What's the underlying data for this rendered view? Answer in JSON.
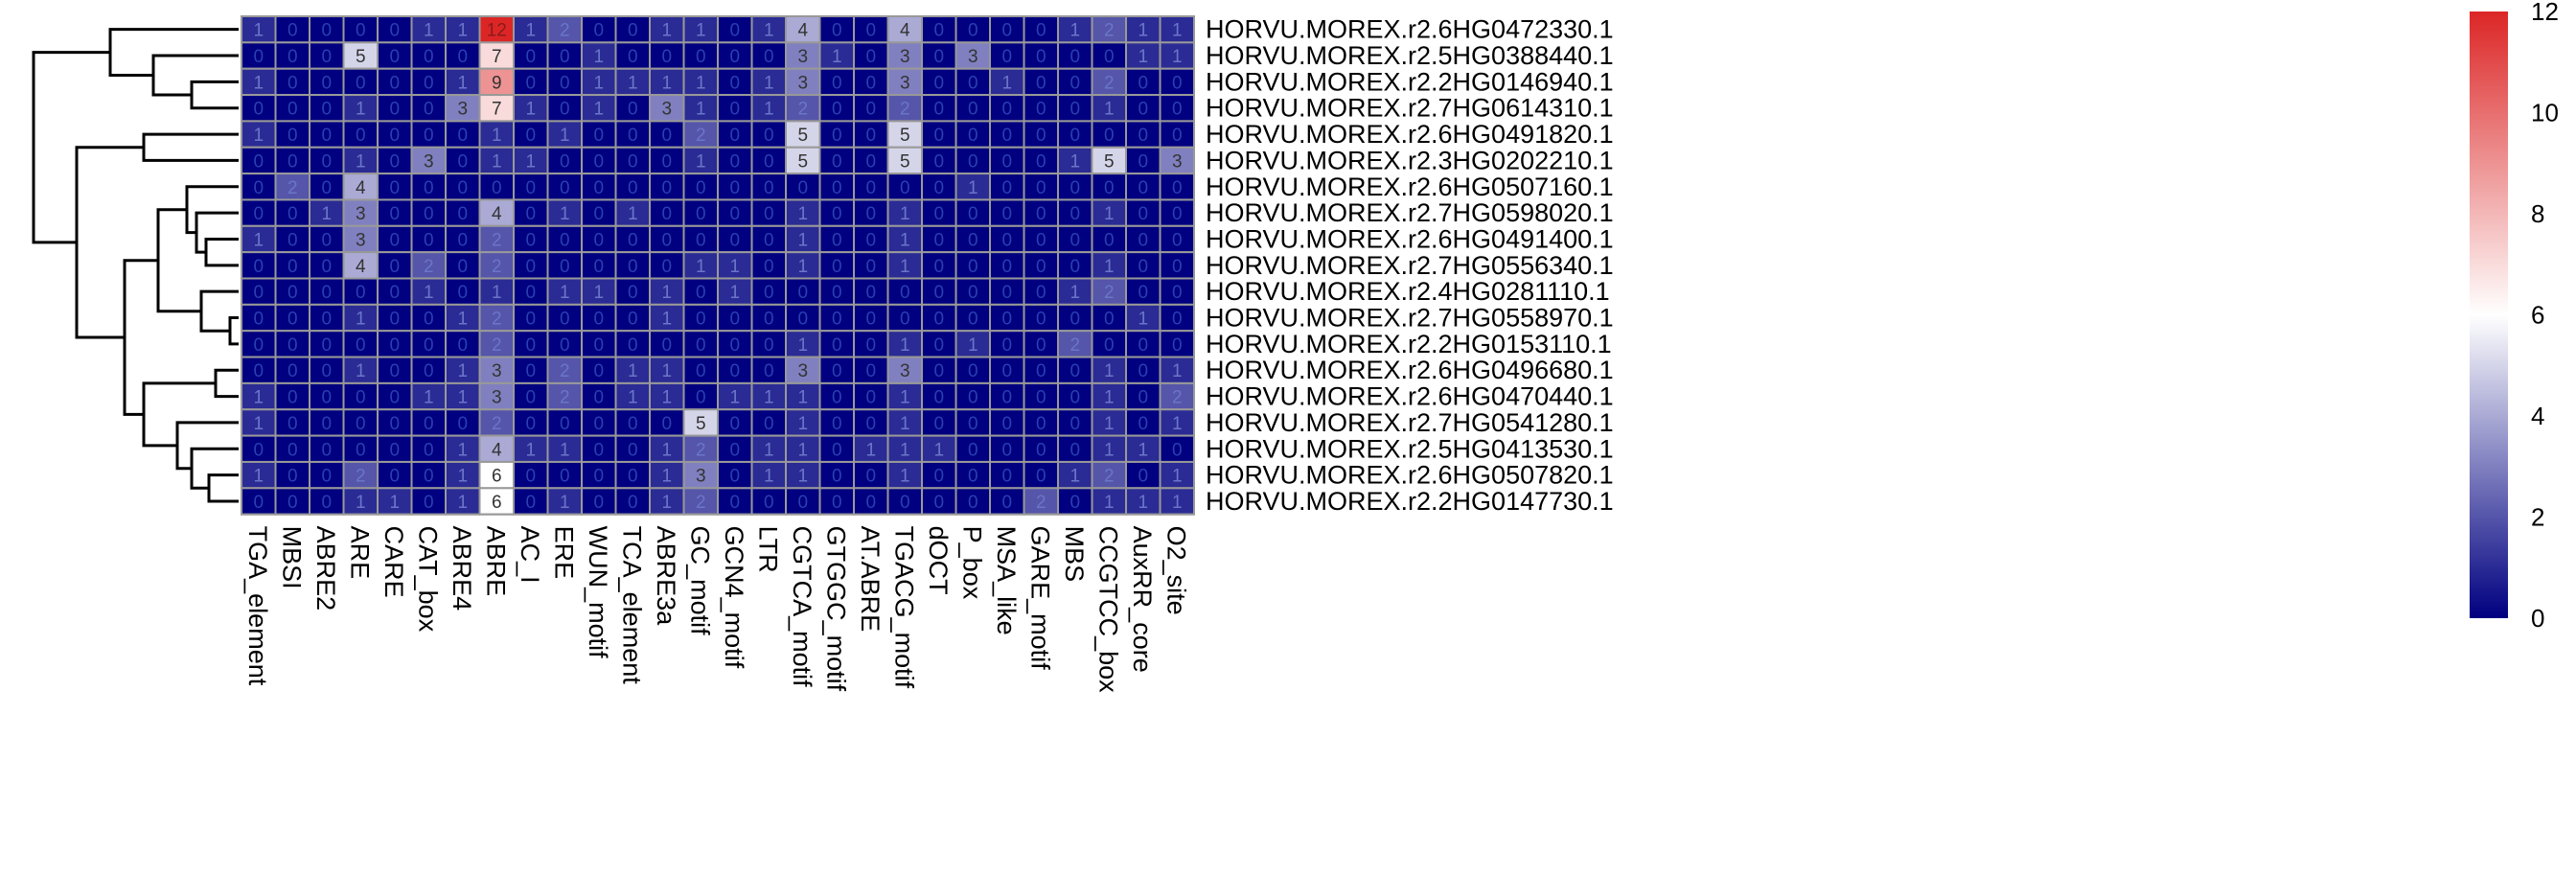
{
  "chart_data": {
    "type": "heatmap",
    "title": "",
    "xlabel": "",
    "ylabel": "",
    "columns": [
      "TGA_element",
      "MBSI",
      "ABRE2",
      "ARE",
      "CARE",
      "CAT_box",
      "ABRE4",
      "ABRE",
      "AC_I",
      "ERE",
      "WUN_motif",
      "TCA_element",
      "ABRE3a",
      "GC_motif",
      "GCN4_motif",
      "LTR",
      "CGTCA_motif",
      "GTGGC_motif",
      "AT.ABRE",
      "TGACG_motif",
      "dOCT",
      "P_box",
      "MSA_like",
      "GARE_motif",
      "MBS",
      "CCGTCC_box",
      "AuxRR_core",
      "O2_site"
    ],
    "rows": [
      "HORVU.MOREX.r2.6HG0472330.1",
      "HORVU.MOREX.r2.5HG0388440.1",
      "HORVU.MOREX.r2.2HG0146940.1",
      "HORVU.MOREX.r2.7HG0614310.1",
      "HORVU.MOREX.r2.6HG0491820.1",
      "HORVU.MOREX.r2.3HG0202210.1",
      "HORVU.MOREX.r2.6HG0507160.1",
      "HORVU.MOREX.r2.7HG0598020.1",
      "HORVU.MOREX.r2.6HG0491400.1",
      "HORVU.MOREX.r2.7HG0556340.1",
      "HORVU.MOREX.r2.4HG0281110.1",
      "HORVU.MOREX.r2.7HG0558970.1",
      "HORVU.MOREX.r2.2HG0153110.1",
      "HORVU.MOREX.r2.6HG0496680.1",
      "HORVU.MOREX.r2.6HG0470440.1",
      "HORVU.MOREX.r2.7HG0541280.1",
      "HORVU.MOREX.r2.5HG0413530.1",
      "HORVU.MOREX.r2.6HG0507820.1",
      "HORVU.MOREX.r2.2HG0147730.1"
    ],
    "values": [
      [
        1,
        0,
        0,
        0,
        0,
        1,
        1,
        12,
        1,
        2,
        0,
        0,
        1,
        1,
        0,
        1,
        4,
        0,
        0,
        4,
        0,
        0,
        0,
        0,
        1,
        2,
        1,
        1
      ],
      [
        0,
        0,
        0,
        5,
        0,
        0,
        0,
        7,
        0,
        0,
        1,
        0,
        0,
        0,
        0,
        0,
        3,
        1,
        0,
        3,
        0,
        3,
        0,
        0,
        0,
        0,
        1,
        1
      ],
      [
        1,
        0,
        0,
        0,
        0,
        0,
        1,
        9,
        0,
        0,
        1,
        1,
        1,
        1,
        0,
        1,
        3,
        0,
        0,
        3,
        0,
        0,
        1,
        0,
        0,
        2,
        0,
        0
      ],
      [
        0,
        0,
        0,
        1,
        0,
        0,
        3,
        7,
        1,
        0,
        1,
        0,
        3,
        1,
        0,
        1,
        2,
        0,
        0,
        2,
        0,
        0,
        0,
        0,
        0,
        1,
        0,
        0
      ],
      [
        1,
        0,
        0,
        0,
        0,
        0,
        0,
        1,
        0,
        1,
        0,
        0,
        0,
        2,
        0,
        0,
        5,
        0,
        0,
        5,
        0,
        0,
        0,
        0,
        0,
        0,
        0,
        0
      ],
      [
        0,
        0,
        0,
        1,
        0,
        3,
        0,
        1,
        1,
        0,
        0,
        0,
        0,
        1,
        0,
        0,
        5,
        0,
        0,
        5,
        0,
        0,
        0,
        0,
        1,
        5,
        0,
        3
      ],
      [
        0,
        2,
        0,
        4,
        0,
        0,
        0,
        0,
        0,
        0,
        0,
        0,
        0,
        0,
        0,
        0,
        0,
        0,
        0,
        0,
        0,
        1,
        0,
        0,
        0,
        0,
        0,
        0
      ],
      [
        0,
        0,
        1,
        3,
        0,
        0,
        0,
        4,
        0,
        1,
        0,
        1,
        0,
        0,
        0,
        0,
        1,
        0,
        0,
        1,
        0,
        0,
        0,
        0,
        0,
        1,
        0,
        0
      ],
      [
        1,
        0,
        0,
        3,
        0,
        0,
        0,
        2,
        0,
        0,
        0,
        0,
        0,
        0,
        0,
        0,
        1,
        0,
        0,
        1,
        0,
        0,
        0,
        0,
        0,
        0,
        0,
        0
      ],
      [
        0,
        0,
        0,
        4,
        0,
        2,
        0,
        2,
        0,
        0,
        0,
        0,
        0,
        1,
        1,
        0,
        1,
        0,
        0,
        1,
        0,
        0,
        0,
        0,
        0,
        1,
        0,
        0
      ],
      [
        0,
        0,
        0,
        0,
        0,
        1,
        0,
        1,
        0,
        1,
        1,
        0,
        1,
        0,
        1,
        0,
        0,
        0,
        0,
        0,
        0,
        0,
        0,
        0,
        1,
        2,
        0,
        0
      ],
      [
        0,
        0,
        0,
        1,
        0,
        0,
        1,
        2,
        0,
        0,
        0,
        0,
        1,
        0,
        0,
        0,
        0,
        0,
        0,
        0,
        0,
        0,
        0,
        0,
        0,
        0,
        1,
        0
      ],
      [
        0,
        0,
        0,
        0,
        0,
        0,
        0,
        2,
        0,
        0,
        0,
        0,
        0,
        0,
        0,
        0,
        1,
        0,
        0,
        1,
        0,
        1,
        0,
        0,
        2,
        0,
        0,
        0
      ],
      [
        0,
        0,
        0,
        1,
        0,
        0,
        1,
        3,
        0,
        2,
        0,
        1,
        1,
        0,
        0,
        0,
        3,
        0,
        0,
        3,
        0,
        0,
        0,
        0,
        0,
        1,
        0,
        1
      ],
      [
        1,
        0,
        0,
        0,
        0,
        1,
        1,
        3,
        0,
        2,
        0,
        1,
        1,
        0,
        1,
        1,
        1,
        0,
        0,
        1,
        0,
        0,
        0,
        0,
        0,
        1,
        0,
        2
      ],
      [
        1,
        0,
        0,
        0,
        0,
        0,
        0,
        2,
        0,
        0,
        0,
        0,
        0,
        5,
        0,
        0,
        1,
        0,
        0,
        1,
        0,
        0,
        0,
        0,
        0,
        1,
        0,
        1
      ],
      [
        0,
        0,
        0,
        0,
        0,
        0,
        1,
        4,
        1,
        1,
        0,
        0,
        1,
        2,
        0,
        1,
        1,
        0,
        1,
        1,
        1,
        0,
        0,
        0,
        0,
        1,
        1,
        0
      ],
      [
        1,
        0,
        0,
        2,
        0,
        0,
        1,
        6,
        0,
        0,
        0,
        0,
        1,
        3,
        0,
        1,
        1,
        0,
        0,
        1,
        0,
        0,
        0,
        0,
        1,
        2,
        0,
        1
      ],
      [
        0,
        0,
        0,
        1,
        1,
        0,
        1,
        6,
        0,
        1,
        0,
        0,
        1,
        2,
        0,
        0,
        0,
        0,
        0,
        0,
        0,
        0,
        0,
        2,
        0,
        1,
        1,
        1
      ]
    ],
    "color_scale": {
      "min": 0,
      "mid": 6,
      "max": 12,
      "low_color": "#000080",
      "mid_color": "#ffffff",
      "high_color": "#dc2626"
    },
    "legend_ticks": [
      0,
      2,
      4,
      6,
      8,
      10,
      12
    ],
    "legend_placement": "right",
    "cell_labels_shown": true,
    "grid_color": "#999999",
    "dendrogram": "rows"
  }
}
